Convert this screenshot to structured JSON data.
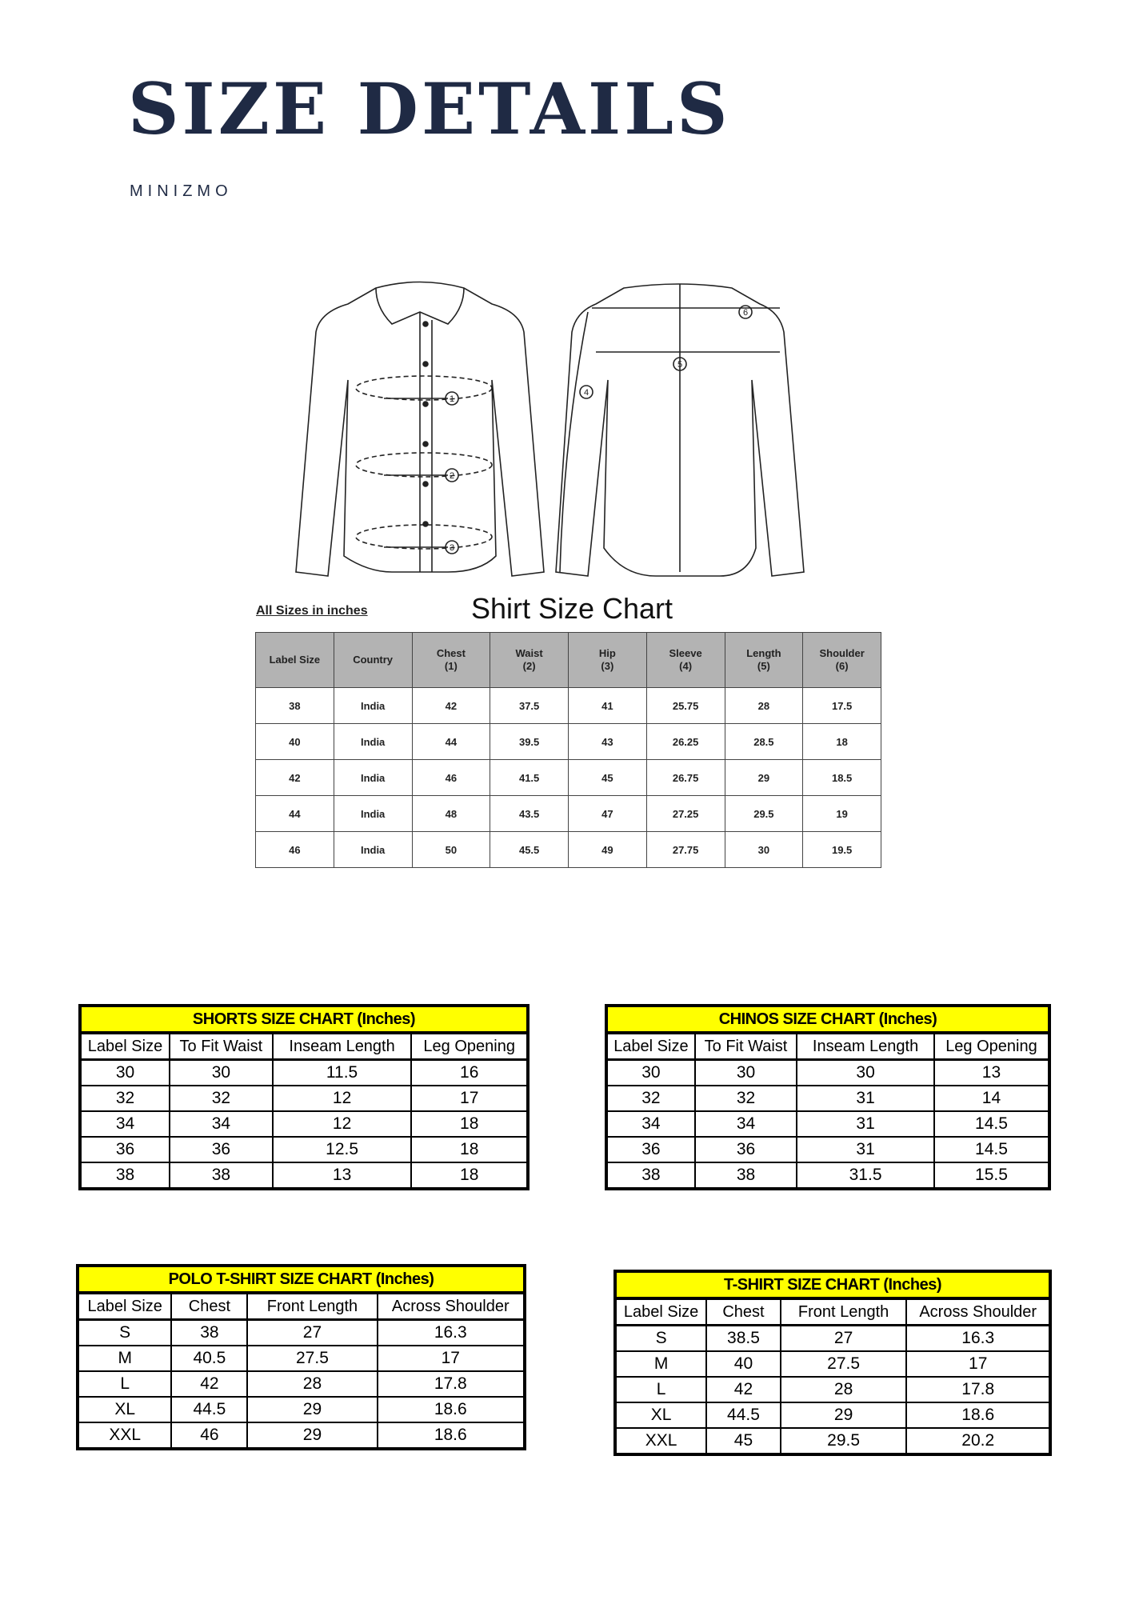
{
  "header": {
    "title": "SIZE DETAILS",
    "brand": "MINIZMO"
  },
  "shirt_chart": {
    "note": "All Sizes in inches",
    "title": "Shirt Size Chart",
    "columns": [
      [
        "Label Size",
        ""
      ],
      [
        "Country",
        ""
      ],
      [
        "Chest",
        "(1)"
      ],
      [
        "Waist",
        "(2)"
      ],
      [
        "Hip",
        "(3)"
      ],
      [
        "Sleeve",
        "(4)"
      ],
      [
        "Length",
        "(5)"
      ],
      [
        "Shoulder",
        "(6)"
      ]
    ],
    "rows": [
      [
        "38",
        "India",
        "42",
        "37.5",
        "41",
        "25.75",
        "28",
        "17.5"
      ],
      [
        "40",
        "India",
        "44",
        "39.5",
        "43",
        "26.25",
        "28.5",
        "18"
      ],
      [
        "42",
        "India",
        "46",
        "41.5",
        "45",
        "26.75",
        "29",
        "18.5"
      ],
      [
        "44",
        "India",
        "48",
        "43.5",
        "47",
        "27.25",
        "29.5",
        "19"
      ],
      [
        "46",
        "India",
        "50",
        "45.5",
        "49",
        "27.75",
        "30",
        "19.5"
      ]
    ],
    "diagram_markers": [
      "1",
      "2",
      "3",
      "4",
      "5",
      "6"
    ]
  },
  "tables": [
    {
      "id": "shorts",
      "title": "SHORTS SIZE CHART (Inches)",
      "columns": [
        "Label Size",
        "To Fit Waist",
        "Inseam Length",
        "Leg Opening"
      ],
      "rows": [
        [
          "30",
          "30",
          "11.5",
          "16"
        ],
        [
          "32",
          "32",
          "12",
          "17"
        ],
        [
          "34",
          "34",
          "12",
          "18"
        ],
        [
          "36",
          "36",
          "12.5",
          "18"
        ],
        [
          "38",
          "38",
          "13",
          "18"
        ]
      ]
    },
    {
      "id": "chinos",
      "title": "CHINOS SIZE CHART (Inches)",
      "columns": [
        "Label Size",
        "To Fit Waist",
        "Inseam Length",
        "Leg Opening"
      ],
      "rows": [
        [
          "30",
          "30",
          "30",
          "13"
        ],
        [
          "32",
          "32",
          "31",
          "14"
        ],
        [
          "34",
          "34",
          "31",
          "14.5"
        ],
        [
          "36",
          "36",
          "31",
          "14.5"
        ],
        [
          "38",
          "38",
          "31.5",
          "15.5"
        ]
      ]
    },
    {
      "id": "polo",
      "title": "POLO T-SHIRT SIZE CHART (Inches)",
      "columns": [
        "Label Size",
        "Chest",
        "Front Length",
        "Across Shoulder"
      ],
      "rows": [
        [
          "S",
          "38",
          "27",
          "16.3"
        ],
        [
          "M",
          "40.5",
          "27.5",
          "17"
        ],
        [
          "L",
          "42",
          "28",
          "17.8"
        ],
        [
          "XL",
          "44.5",
          "29",
          "18.6"
        ],
        [
          "XXL",
          "46",
          "29",
          "18.6"
        ]
      ]
    },
    {
      "id": "tshirt",
      "title": "T-SHIRT SIZE CHART (Inches)",
      "columns": [
        "Label Size",
        "Chest",
        "Front Length",
        "Across Shoulder"
      ],
      "rows": [
        [
          "S",
          "38.5",
          "27",
          "16.3"
        ],
        [
          "M",
          "40",
          "27.5",
          "17"
        ],
        [
          "L",
          "42",
          "28",
          "17.8"
        ],
        [
          "XL",
          "44.5",
          "29",
          "18.6"
        ],
        [
          "XXL",
          "45",
          "29.5",
          "20.2"
        ]
      ]
    }
  ],
  "colors": {
    "title": "#1f2a44",
    "table_title_bg": "#ffff00",
    "shirt_header_bg": "#b3b3b3"
  }
}
